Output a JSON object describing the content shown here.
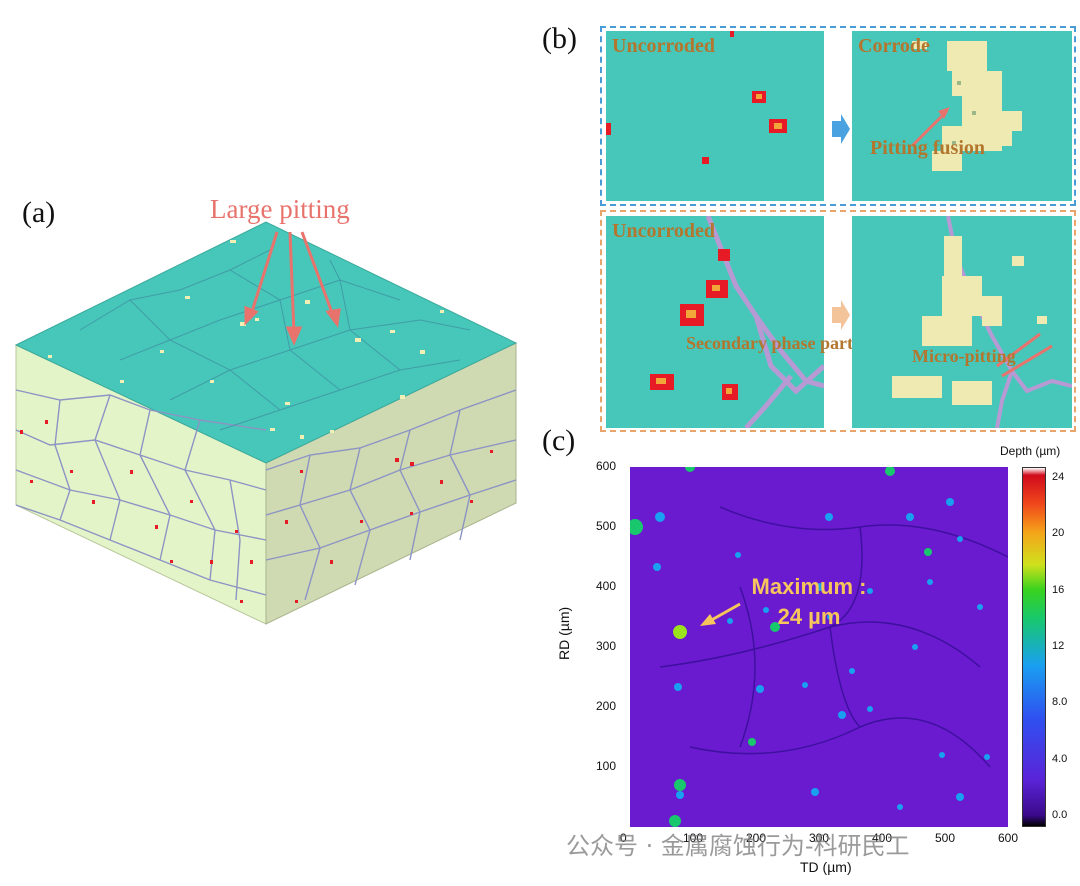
{
  "panel_a": {
    "letter": "(a)",
    "annotation": "Large pitting",
    "colors": {
      "top": "#46c7b9",
      "side_left": "#e4f4c9",
      "side_right": "#cfd9b2",
      "boundary": "#8c94c4",
      "particle": "#e61b26",
      "pit": "#f1efb4"
    }
  },
  "panel_b": {
    "letter": "(b)",
    "top_row": {
      "before": "Uncorroded",
      "after": "Corrode",
      "note": "Pitting fusion",
      "frame_color": "#4a9cd6"
    },
    "bottom_row": {
      "before": "Uncorroded",
      "before_note": "Secondary phase particles",
      "after_note": "Micro-pitting",
      "frame_color": "#e7a56b"
    },
    "label_color": "#b3762f"
  },
  "panel_c": {
    "letter": "(c)",
    "annotation_line1": "Maximum :",
    "annotation_line2": "24 µm",
    "colorbar_title": "Depth (µm)",
    "colorbar_ticks": [
      "24",
      "20",
      "16",
      "12",
      "8.0",
      "4.0",
      "0.0"
    ],
    "x_ticks": [
      "0",
      "100",
      "200",
      "300",
      "400",
      "500",
      "600"
    ],
    "y_ticks": [
      "600",
      "500",
      "400",
      "300",
      "200",
      "100"
    ],
    "xlabel": "TD (µm)",
    "ylabel": "RD (µm)"
  },
  "chart_data": {
    "type": "heatmap",
    "title": "",
    "xlabel": "TD (µm)",
    "ylabel": "RD (µm)",
    "xlim": [
      0,
      600
    ],
    "ylim": [
      0,
      600
    ],
    "colorbar_label": "Depth (µm)",
    "colorbar_range": [
      0,
      24
    ],
    "max_value": 24,
    "max_location": [
      95,
      325
    ]
  },
  "watermark": "公众号 · 金属腐蚀行为-科研民工"
}
